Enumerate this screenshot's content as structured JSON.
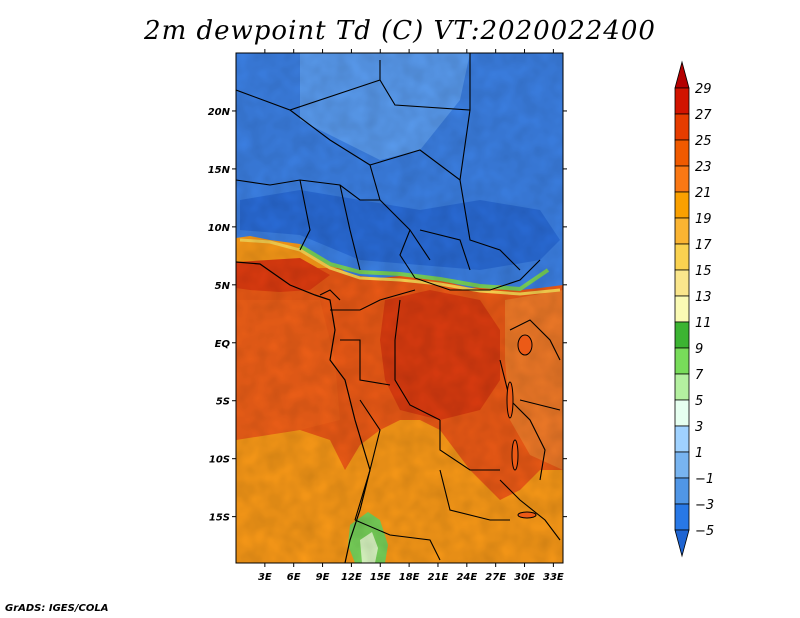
{
  "title": "2m dewpoint Td (C) VT:2020022400",
  "credit": "GrADS: IGES/COLA",
  "map": {
    "lon_range": [
      0,
      34
    ],
    "lat_range": [
      -19,
      25
    ],
    "lon_ticks": [
      3,
      6,
      9,
      12,
      15,
      18,
      21,
      24,
      27,
      30,
      33
    ],
    "lon_tick_labels": [
      "3E",
      "6E",
      "9E",
      "12E",
      "15E",
      "18E",
      "21E",
      "24E",
      "27E",
      "30E",
      "33E"
    ],
    "lat_ticks": [
      20,
      15,
      10,
      5,
      0,
      -5,
      -10,
      -15
    ],
    "lat_tick_labels": [
      "20N",
      "15N",
      "10N",
      "5N",
      "EQ",
      "5S",
      "10S",
      "15S"
    ]
  },
  "colorbar": {
    "levels": [
      29,
      27,
      25,
      23,
      21,
      19,
      17,
      15,
      13,
      11,
      9,
      7,
      5,
      3,
      1,
      -1,
      -3,
      -5
    ],
    "labels": [
      "29",
      "27",
      "25",
      "23",
      "21",
      "19",
      "17",
      "15",
      "13",
      "11",
      "9",
      "7",
      "5",
      "3",
      "1",
      "−1",
      "−3",
      "−5"
    ],
    "colors": [
      "#b40000",
      "#d21400",
      "#e63c00",
      "#f05a00",
      "#fa7814",
      "#faa000",
      "#fab432",
      "#fad250",
      "#fae68c",
      "#fafab4",
      "#3cb432",
      "#78dc5a",
      "#b4f0a0",
      "#e6fff0",
      "#a0d2ff",
      "#78b4f0",
      "#5096e6",
      "#2878e6",
      "#1e64d2"
    ]
  },
  "regions": [
    {
      "name": "sahara-sahel-dry-air",
      "color": "#3c82e6"
    },
    {
      "name": "gulf-coast-moist-air",
      "color": "#f05a14"
    },
    {
      "name": "congo-basin-moist-air",
      "color": "#e64614"
    },
    {
      "name": "southern-africa-air",
      "color": "#fa9614"
    },
    {
      "name": "namibia-green-patch",
      "color": "#78d25a"
    }
  ]
}
